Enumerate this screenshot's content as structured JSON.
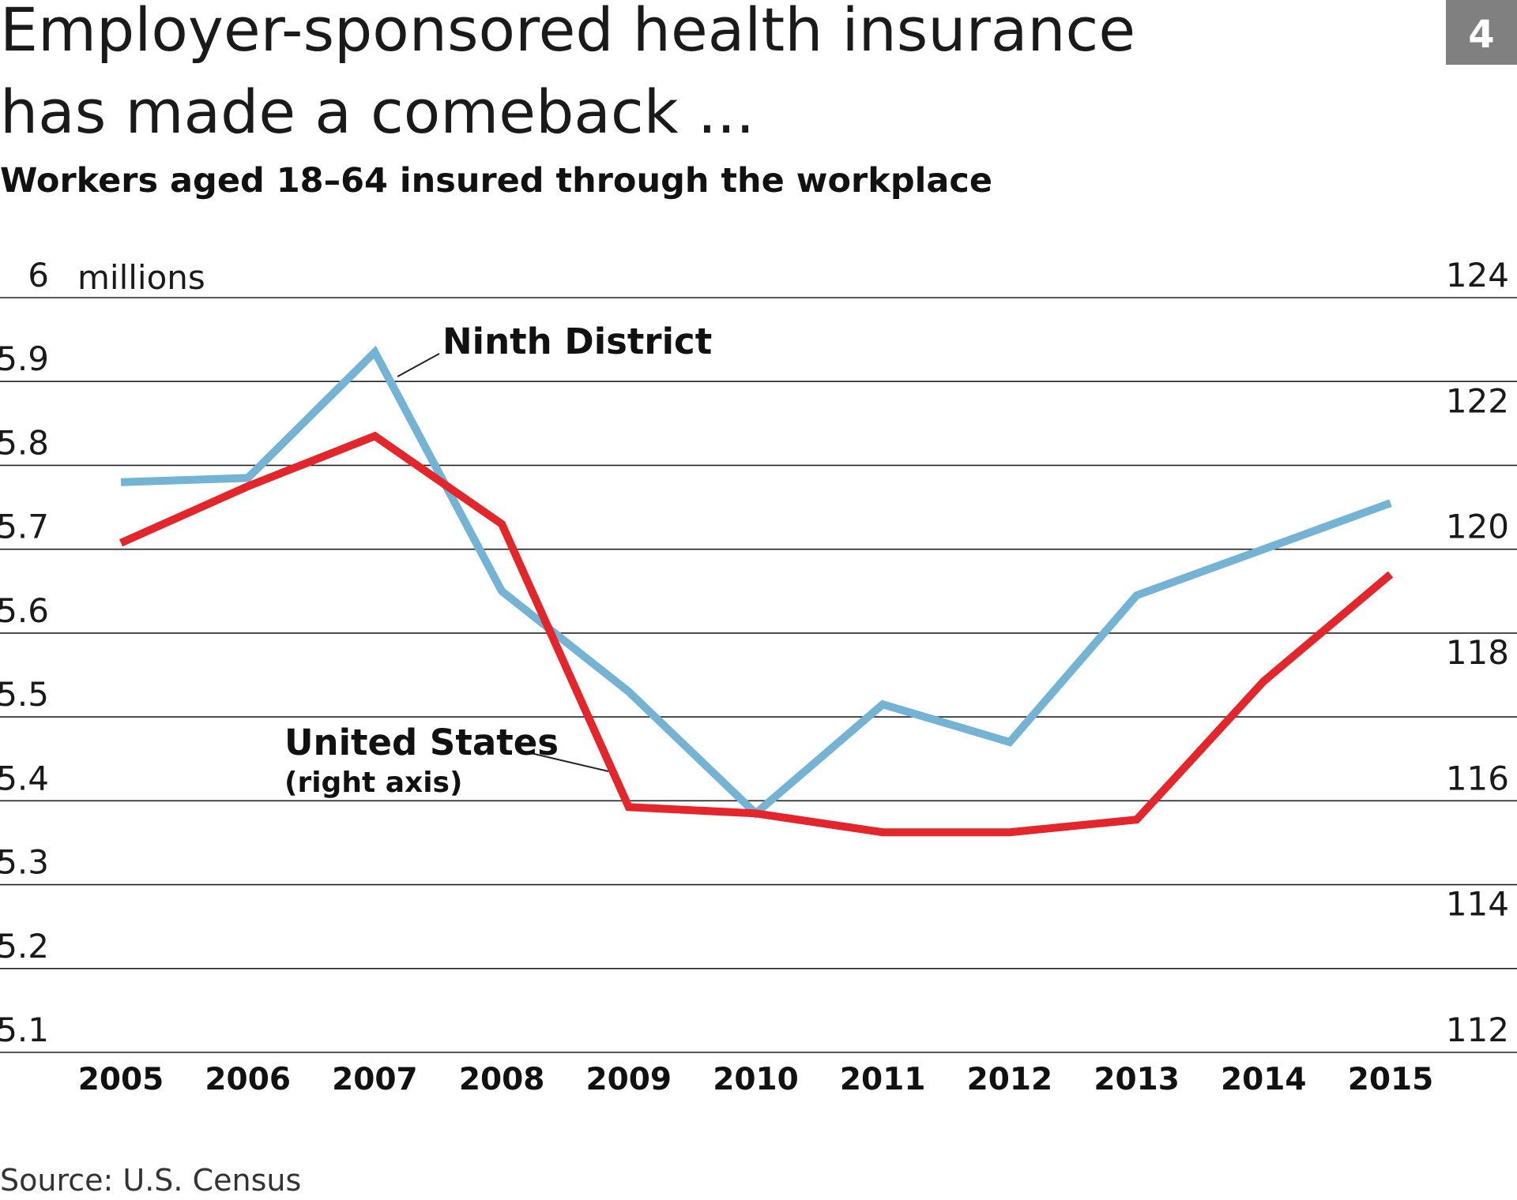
{
  "header": {
    "title_line1": "Employer-sponsored health insurance",
    "title_line2": "has made a comeback ...",
    "subtitle": "Workers aged 18–64 insured through the workplace",
    "figure_number": "4"
  },
  "source": "Source: U.S. Census",
  "colors": {
    "ninth_district": "#74b3d4",
    "united_states": "#e2262b",
    "badge": "#808080",
    "grid": "#222222"
  },
  "chart_data": {
    "type": "line",
    "x": [
      "2005",
      "2006",
      "2007",
      "2008",
      "2009",
      "2010",
      "2011",
      "2012",
      "2013",
      "2014",
      "2015"
    ],
    "left_axis": {
      "unit_label": "millions",
      "ylim": [
        5.1,
        6.0
      ],
      "ticks": [
        "6",
        "5.9",
        "5.8",
        "5.7",
        "5.6",
        "5.5",
        "5.4",
        "5.3",
        "5.2",
        "5.1"
      ]
    },
    "right_axis": {
      "ylim": [
        112,
        124
      ],
      "ticks": [
        "124",
        "122",
        "120",
        "118",
        "116",
        "114",
        "112"
      ]
    },
    "grid": true,
    "series": [
      {
        "name": "Ninth District",
        "axis": "left",
        "values": [
          5.78,
          5.785,
          5.935,
          5.65,
          5.53,
          5.385,
          5.515,
          5.47,
          5.645,
          5.7,
          5.755
        ]
      },
      {
        "name": "United States",
        "note": "(right axis)",
        "axis": "right",
        "values": [
          120.1,
          121.0,
          121.8,
          120.4,
          115.9,
          115.8,
          115.5,
          115.5,
          115.7,
          117.9,
          119.6
        ]
      }
    ]
  }
}
